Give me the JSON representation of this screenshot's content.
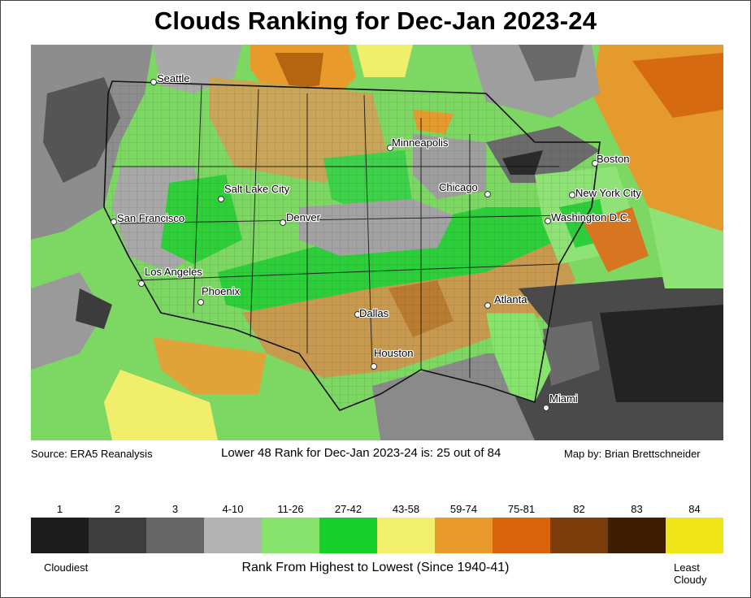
{
  "title": "Clouds Ranking for Dec-Jan 2023-24",
  "footer": {
    "source": "Source: ERA5 Reanalysis",
    "rank_statement": "Lower 48 Rank for Dec-Jan 2023-24 is: 25 out of 84",
    "credit": "Map by: Brian Brettschneider"
  },
  "map": {
    "cities": [
      {
        "name": "Seattle",
        "key": "seattle"
      },
      {
        "name": "San Francisco",
        "key": "san-francisco"
      },
      {
        "name": "Los Angeles",
        "key": "los-angeles"
      },
      {
        "name": "Phoenix",
        "key": "phoenix"
      },
      {
        "name": "Salt Lake City",
        "key": "salt-lake-city"
      },
      {
        "name": "Denver",
        "key": "denver"
      },
      {
        "name": "Minneapolis",
        "key": "minneapolis"
      },
      {
        "name": "Chicago",
        "key": "chicago"
      },
      {
        "name": "Dallas",
        "key": "dallas"
      },
      {
        "name": "Houston",
        "key": "houston"
      },
      {
        "name": "Atlanta",
        "key": "atlanta"
      },
      {
        "name": "Miami",
        "key": "miami"
      },
      {
        "name": "Washington D.C.",
        "key": "washington-dc"
      },
      {
        "name": "New York City",
        "key": "new-york-city"
      },
      {
        "name": "Boston",
        "key": "boston"
      }
    ]
  },
  "legend": {
    "bins": [
      {
        "label": "1",
        "color": "#1c1c1c"
      },
      {
        "label": "2",
        "color": "#3d3d3d"
      },
      {
        "label": "3",
        "color": "#666666"
      },
      {
        "label": "4-10",
        "color": "#b3b3b3"
      },
      {
        "label": "11-26",
        "color": "#86e36c"
      },
      {
        "label": "27-42",
        "color": "#16cf2a"
      },
      {
        "label": "43-58",
        "color": "#f2ef6e"
      },
      {
        "label": "59-74",
        "color": "#e89a2a"
      },
      {
        "label": "75-81",
        "color": "#d8650c"
      },
      {
        "label": "82",
        "color": "#7a3c0a"
      },
      {
        "label": "83",
        "color": "#3e1d05"
      },
      {
        "label": "84",
        "color": "#f0e516"
      }
    ],
    "left_end": "Cloudiest",
    "title": "Rank From Highest to Lowest (Since 1940-41)",
    "right_end_line1": "Least",
    "right_end_line2": "Cloudy"
  }
}
